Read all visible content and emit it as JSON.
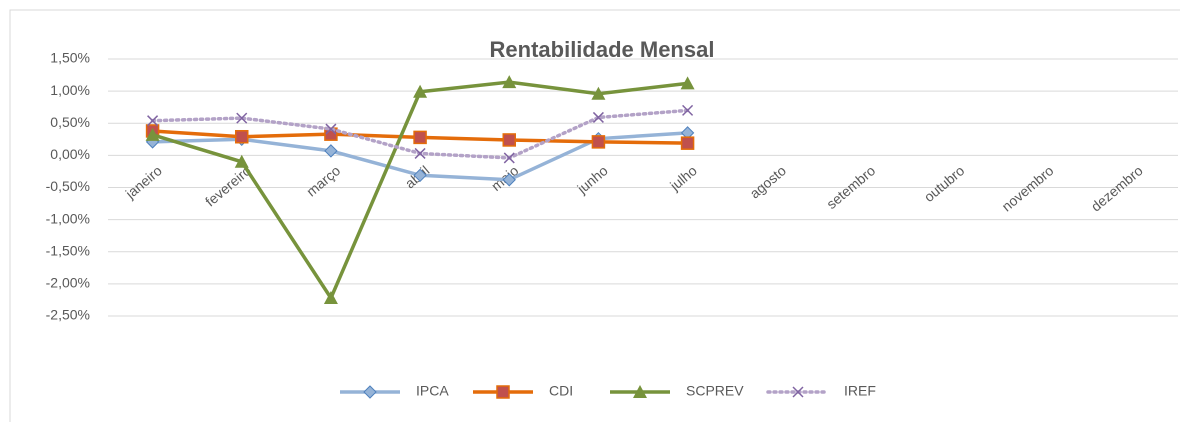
{
  "chart_data": {
    "type": "line",
    "title": "Rentabilidade Mensal",
    "categories": [
      "janeiro",
      "fevereiro",
      "março",
      "abril",
      "maio",
      "junho",
      "julho",
      "agosto",
      "setembro",
      "outubro",
      "novembro",
      "dezembro"
    ],
    "series": [
      {
        "name": "IPCA",
        "color": "#95b3d7",
        "marker_color": "#4f81bd",
        "marker": "diamond",
        "dash": false,
        "values": [
          0.21,
          0.25,
          0.07,
          -0.31,
          -0.38,
          0.26,
          0.35,
          null,
          null,
          null,
          null,
          null
        ]
      },
      {
        "name": "CDI",
        "color": "#e46c0a",
        "marker_color": "#c0504d",
        "marker": "square",
        "dash": false,
        "values": [
          0.38,
          0.29,
          0.33,
          0.28,
          0.24,
          0.21,
          0.19,
          null,
          null,
          null,
          null,
          null
        ]
      },
      {
        "name": "SCPREV",
        "color": "#77933c",
        "marker_color": "#77933c",
        "marker": "triangle",
        "dash": false,
        "values": [
          0.32,
          -0.1,
          -2.22,
          0.99,
          1.14,
          0.96,
          1.12,
          null,
          null,
          null,
          null,
          null
        ]
      },
      {
        "name": "IREF",
        "color": "#b3a2c7",
        "marker_color": "#8064a2",
        "marker": "x",
        "dash": true,
        "values": [
          0.54,
          0.58,
          0.41,
          0.03,
          -0.04,
          0.59,
          0.7,
          null,
          null,
          null,
          null,
          null
        ]
      }
    ],
    "ylim": [
      -2.5,
      1.5
    ],
    "yticks": [
      {
        "value": -2.5,
        "label": "-2,50%"
      },
      {
        "value": -2.0,
        "label": "-2,00%"
      },
      {
        "value": -1.5,
        "label": "-1,50%"
      },
      {
        "value": -1.0,
        "label": "-1,00%"
      },
      {
        "value": -0.5,
        "label": "-0,50%"
      },
      {
        "value": 0,
        "label": "0,00%"
      },
      {
        "value": 0.5,
        "label": "0,50%"
      },
      {
        "value": 1.0,
        "label": "1,00%"
      },
      {
        "value": 1.5,
        "label": "1,50%"
      }
    ],
    "grid": true,
    "legend": "bottom"
  }
}
